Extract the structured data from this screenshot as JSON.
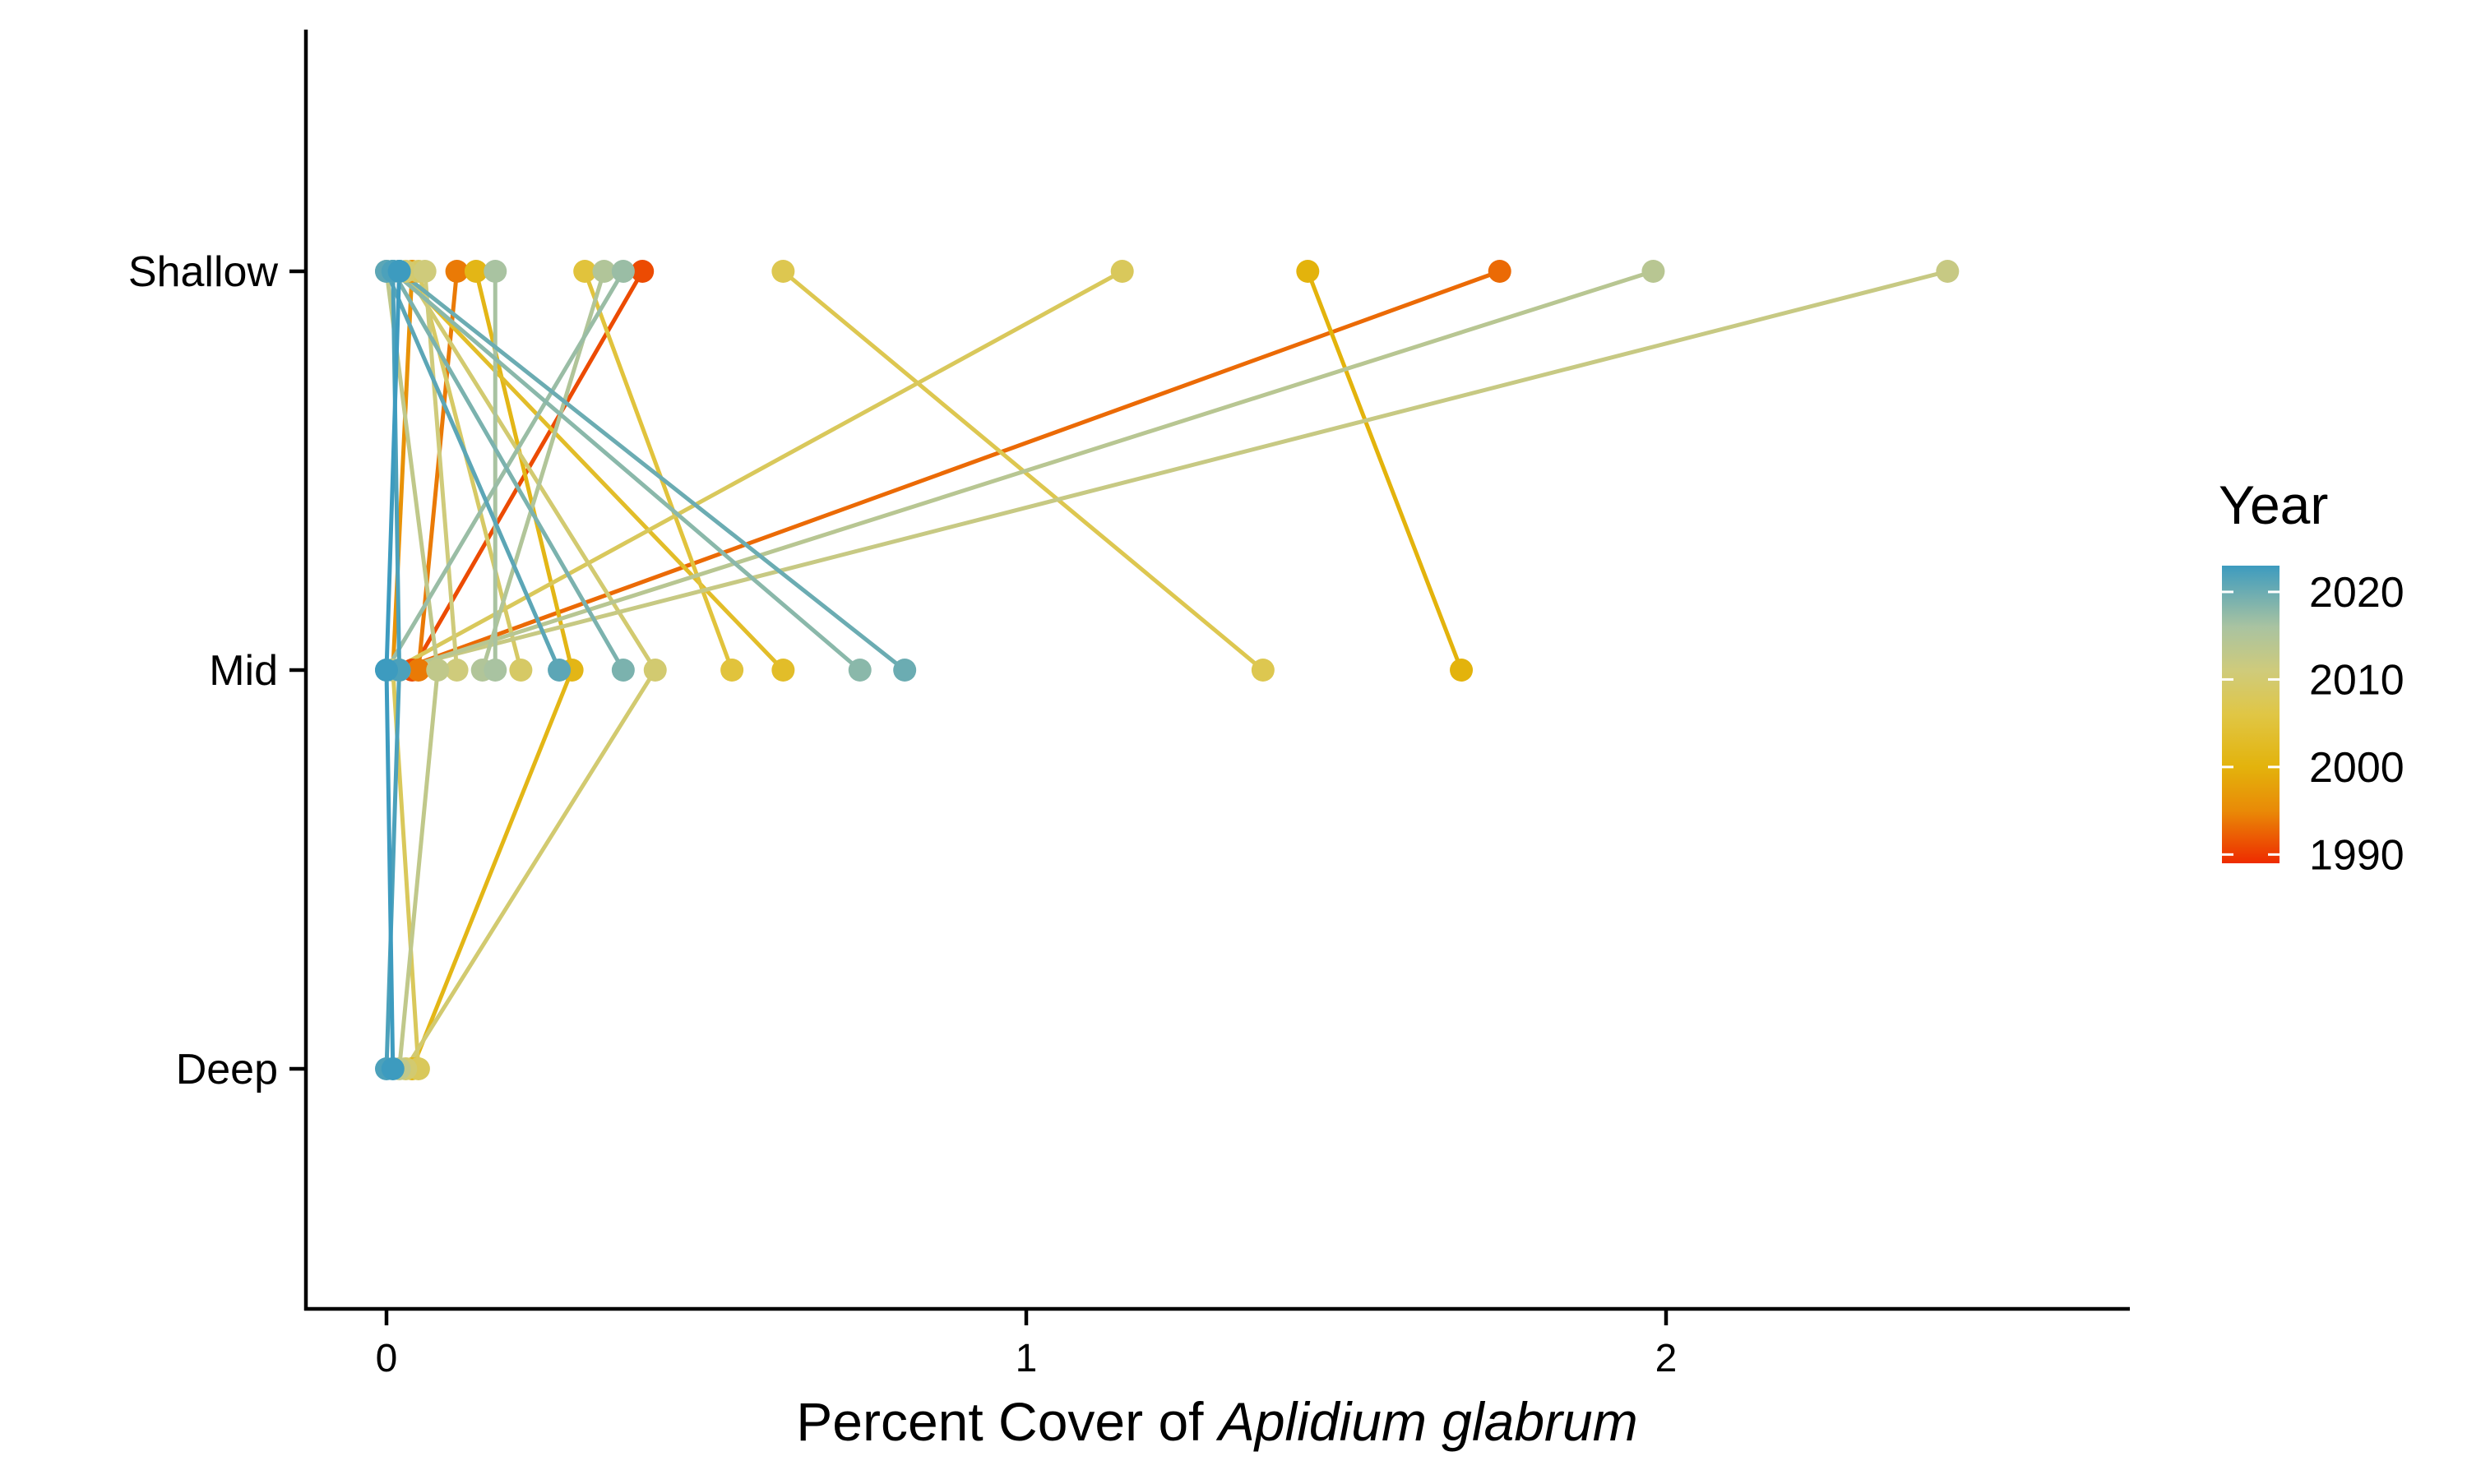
{
  "chart_data": {
    "type": "line",
    "title": "",
    "x_label_prefix": "Percent Cover of ",
    "x_label_italic": "Aplidium glabrum",
    "ylabel": "",
    "xlim": [
      -0.13,
      2.72
    ],
    "x_ticks": [
      0,
      1,
      2
    ],
    "y_categories": [
      "Shallow",
      "Mid",
      "Deep"
    ],
    "grid": false,
    "legend": {
      "title": "Year",
      "placement": "right",
      "ticks": [
        2020,
        2010,
        2000,
        1990
      ],
      "range": [
        1989,
        2023
      ],
      "gradient": [
        {
          "year": 1989,
          "color": "#EE2B00"
        },
        {
          "year": 1995,
          "color": "#E98A07"
        },
        {
          "year": 2000,
          "color": "#E3B30C"
        },
        {
          "year": 2006,
          "color": "#E0C645"
        },
        {
          "year": 2011,
          "color": "#CFCB7B"
        },
        {
          "year": 2016,
          "color": "#A9C3A1"
        },
        {
          "year": 2023,
          "color": "#3D9BBF"
        }
      ]
    },
    "series": [
      {
        "year": 1991,
        "points": [
          {
            "depth": "Shallow",
            "x": 0.4
          },
          {
            "depth": "Mid",
            "x": 0.04
          }
        ]
      },
      {
        "year": 1993,
        "points": [
          {
            "depth": "Shallow",
            "x": 1.74
          },
          {
            "depth": "Mid",
            "x": 0.02
          }
        ]
      },
      {
        "year": 1994,
        "points": [
          {
            "depth": "Shallow",
            "x": 0.11
          },
          {
            "depth": "Mid",
            "x": 0.05
          }
        ]
      },
      {
        "year": 1996,
        "points": [
          {
            "depth": "Shallow",
            "x": 0.04
          },
          {
            "depth": "Mid",
            "x": 0.01
          }
        ]
      },
      {
        "year": 2000,
        "points": [
          {
            "depth": "Shallow",
            "x": 1.44
          },
          {
            "depth": "Mid",
            "x": 1.68
          }
        ]
      },
      {
        "year": 2001,
        "points": [
          {
            "depth": "Shallow",
            "x": 0.14
          },
          {
            "depth": "Mid",
            "x": 0.29
          },
          {
            "depth": "Deep",
            "x": 0.04
          }
        ]
      },
      {
        "year": 2003,
        "points": [
          {
            "depth": "Shallow",
            "x": 0.02
          },
          {
            "depth": "Mid",
            "x": 0.62
          }
        ]
      },
      {
        "year": 2005,
        "points": [
          {
            "depth": "Shallow",
            "x": 0.31
          },
          {
            "depth": "Mid",
            "x": 0.54
          }
        ]
      },
      {
        "year": 2007,
        "points": [
          {
            "depth": "Shallow",
            "x": 0.62
          },
          {
            "depth": "Mid",
            "x": 1.37
          }
        ]
      },
      {
        "year": 2008,
        "points": [
          {
            "depth": "Shallow",
            "x": 1.15
          },
          {
            "depth": "Mid",
            "x": 0.01
          },
          {
            "depth": "Deep",
            "x": 0.05
          }
        ]
      },
      {
        "year": 2009,
        "points": [
          {
            "depth": "Shallow",
            "x": 0.05
          },
          {
            "depth": "Mid",
            "x": 0.21
          }
        ]
      },
      {
        "year": 2010,
        "points": [
          {
            "depth": "Shallow",
            "x": 0.03
          },
          {
            "depth": "Mid",
            "x": 0.42
          },
          {
            "depth": "Deep",
            "x": 0.03
          }
        ]
      },
      {
        "year": 2011,
        "points": [
          {
            "depth": "Shallow",
            "x": 0.06
          },
          {
            "depth": "Mid",
            "x": 0.11
          }
        ]
      },
      {
        "year": 2012,
        "points": [
          {
            "depth": "Shallow",
            "x": 2.44
          },
          {
            "depth": "Mid",
            "x": 0.01
          }
        ]
      },
      {
        "year": 2013,
        "points": [
          {
            "depth": "Shallow",
            "x": 0.0
          },
          {
            "depth": "Mid",
            "x": 0.08
          },
          {
            "depth": "Deep",
            "x": 0.02
          }
        ]
      },
      {
        "year": 2014,
        "points": [
          {
            "depth": "Shallow",
            "x": 1.98
          },
          {
            "depth": "Mid",
            "x": 0.02
          }
        ]
      },
      {
        "year": 2015,
        "points": [
          {
            "depth": "Shallow",
            "x": 0.34
          },
          {
            "depth": "Mid",
            "x": 0.15
          }
        ]
      },
      {
        "year": 2016,
        "points": [
          {
            "depth": "Shallow",
            "x": 0.17
          },
          {
            "depth": "Mid",
            "x": 0.17
          }
        ]
      },
      {
        "year": 2017,
        "points": [
          {
            "depth": "Shallow",
            "x": 0.37
          },
          {
            "depth": "Mid",
            "x": 0.0
          }
        ]
      },
      {
        "year": 2018,
        "points": [
          {
            "depth": "Shallow",
            "x": 0.01
          },
          {
            "depth": "Mid",
            "x": 0.74
          }
        ]
      },
      {
        "year": 2019,
        "points": [
          {
            "depth": "Shallow",
            "x": 0.01
          },
          {
            "depth": "Mid",
            "x": 0.37
          }
        ]
      },
      {
        "year": 2020,
        "points": [
          {
            "depth": "Shallow",
            "x": 0.02
          },
          {
            "depth": "Mid",
            "x": 0.81
          }
        ]
      },
      {
        "year": 2021,
        "points": [
          {
            "depth": "Shallow",
            "x": 0.0
          },
          {
            "depth": "Mid",
            "x": 0.27
          }
        ]
      },
      {
        "year": 2022,
        "points": [
          {
            "depth": "Shallow",
            "x": 0.01
          },
          {
            "depth": "Mid",
            "x": 0.02
          },
          {
            "depth": "Deep",
            "x": 0.0
          }
        ]
      },
      {
        "year": 2023,
        "points": [
          {
            "depth": "Shallow",
            "x": 0.02
          },
          {
            "depth": "Mid",
            "x": 0.0
          },
          {
            "depth": "Deep",
            "x": 0.01
          }
        ]
      }
    ]
  }
}
